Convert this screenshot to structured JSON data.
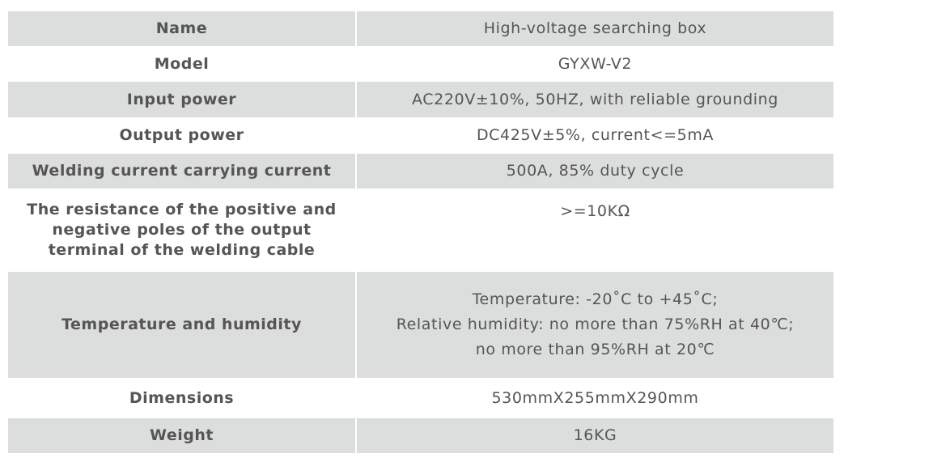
{
  "colors": {
    "row_shade": "#dcdddd",
    "text": "#555555"
  },
  "rows": [
    {
      "label": "Name",
      "value": "High-voltage searching box"
    },
    {
      "label": "Model",
      "value": "GYXW-V2"
    },
    {
      "label": "Input power",
      "value": "AC220V±10%, 50HZ, with reliable grounding"
    },
    {
      "label": "Output power",
      "value": "DC425V±5%, current<=5mA"
    },
    {
      "label": "Welding current carrying current",
      "value": "500A, 85% duty cycle"
    },
    {
      "label": "The resistance of the positive and negative poles of the output terminal of the welding cable",
      "value": ">=10KΩ"
    },
    {
      "label": "Temperature and humidity",
      "value_lines": [
        "Temperature: -20˚C to +45˚C;",
        "Relative humidity: no more than 75%RH at 40℃;",
        "no more than 95%RH at 20℃"
      ]
    },
    {
      "label": "Dimensions",
      "value": "530mmX255mmX290mm"
    },
    {
      "label": "Weight",
      "value": "16KG"
    }
  ]
}
